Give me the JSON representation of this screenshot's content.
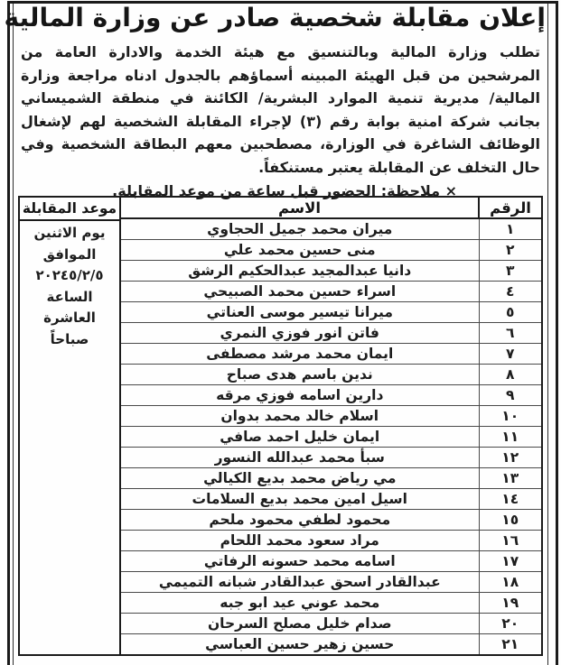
{
  "colors": {
    "ink": "#1a1a1a",
    "frame": "#1b1b1b",
    "grid": "#4a4a4a",
    "background": "#fefefe"
  },
  "announcement": {
    "title": "إعلان مقابلة شخصية صادر عن وزارة المالية",
    "body": "تطلب وزارة المالية وبالتنسيق مع هيئة الخدمة والادارة العامة من المرشحين من قبل الهيئة المبينه أسماؤهم بالجدول ادناه مراجعة وزارة المالية/ مديرية تنمية الموارد البشرية/ الكائنة في منطقة الشميساني بجانب شركة امنية بوابة رقم (٣) لإجراء المقابلة الشخصية لهم لإشغال الوظائف الشاغرة في الوزارة، مصطحبين معهم البطاقة الشخصية وفي حال التخلف عن المقابلة يعتبر مستنكفاً.",
    "note": "× ملاحظة: الحضور قبل ساعة من موعد المقابلة."
  },
  "table": {
    "headers": {
      "number": "الرقم",
      "name": "الاسم",
      "appointment": "موعد المقابلة"
    },
    "appointment_lines": [
      "يوم الاثنين",
      "الموافق",
      "٢٠٢٤٥/٢/٥",
      "الساعة",
      "العاشرة",
      "صباحاً"
    ],
    "rows": [
      {
        "num": "١",
        "name": "ميران محمد جميل الحجاوي"
      },
      {
        "num": "٢",
        "name": "منى حسين محمد علي"
      },
      {
        "num": "٣",
        "name": "دانيا عبدالمجيد عبدالحكيم الرشق"
      },
      {
        "num": "٤",
        "name": "اسراء حسين محمد الصبيحي"
      },
      {
        "num": "٥",
        "name": "ميرانا تيسير موسى العناتي"
      },
      {
        "num": "٦",
        "name": "فاتن انور فوزي النمري"
      },
      {
        "num": "٧",
        "name": "ايمان محمد مرشد مصطفى"
      },
      {
        "num": "٨",
        "name": "ندين باسم هدى صباح"
      },
      {
        "num": "٩",
        "name": "دارين اسامه فوزي مرقه"
      },
      {
        "num": "١٠",
        "name": "اسلام خالد محمد بدوان"
      },
      {
        "num": "١١",
        "name": "ايمان خليل احمد صافي"
      },
      {
        "num": "١٢",
        "name": "سبأ محمد عبدالله النسور"
      },
      {
        "num": "١٣",
        "name": "مي رياض محمد بديع الكيالي"
      },
      {
        "num": "١٤",
        "name": "اسيل امين محمد بديع السلامات"
      },
      {
        "num": "١٥",
        "name": "محمود لطفي محمود ملحم"
      },
      {
        "num": "١٦",
        "name": "مراد سعود محمد اللحام"
      },
      {
        "num": "١٧",
        "name": "اسامه محمد حسونه الرفاتي"
      },
      {
        "num": "١٨",
        "name": "عبدالقادر اسحق عبدالقادر شبانه التميمي"
      },
      {
        "num": "١٩",
        "name": "محمد عوني عيد ابو جبه"
      },
      {
        "num": "٢٠",
        "name": "صدام خليل مصلح السرحان"
      },
      {
        "num": "٢١",
        "name": "حسين زهير حسين العباسي"
      }
    ]
  }
}
